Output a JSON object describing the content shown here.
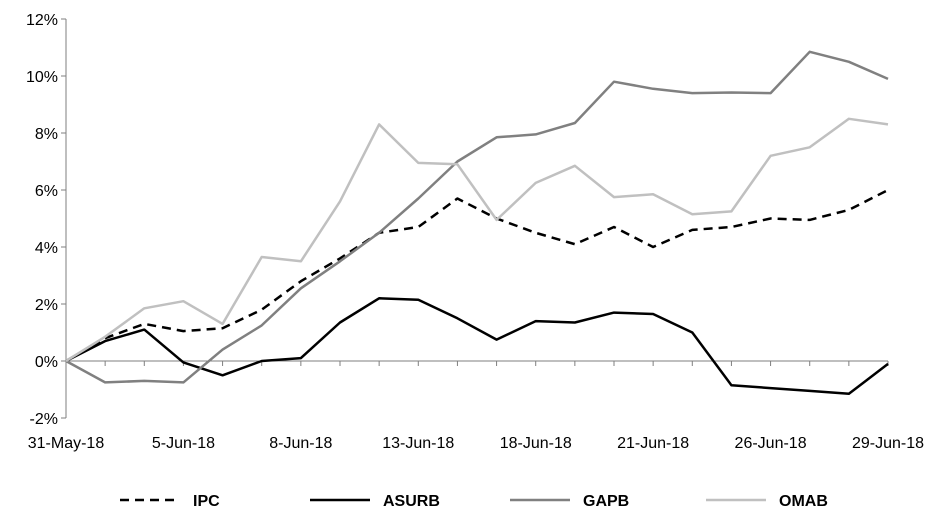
{
  "chart_data": {
    "type": "line",
    "title": "",
    "xlabel": "",
    "ylabel": "",
    "ylim": [
      -2,
      12
    ],
    "y_ticks": [
      -2,
      0,
      2,
      4,
      6,
      8,
      10,
      12
    ],
    "y_tick_labels": [
      "-2%",
      "0%",
      "2%",
      "4%",
      "6%",
      "8%",
      "10%",
      "12%"
    ],
    "x": [
      "31-May-18",
      "1-Jun-18",
      "4-Jun-18",
      "5-Jun-18",
      "6-Jun-18",
      "7-Jun-18",
      "8-Jun-18",
      "11-Jun-18",
      "12-Jun-18",
      "13-Jun-18",
      "14-Jun-18",
      "15-Jun-18",
      "18-Jun-18",
      "19-Jun-18",
      "20-Jun-18",
      "21-Jun-18",
      "22-Jun-18",
      "25-Jun-18",
      "26-Jun-18",
      "27-Jun-18",
      "28-Jun-18",
      "29-Jun-18"
    ],
    "x_tick_labels": [
      "31-May-18",
      "5-Jun-18",
      "8-Jun-18",
      "13-Jun-18",
      "18-Jun-18",
      "21-Jun-18",
      "26-Jun-18",
      "29-Jun-18"
    ],
    "grid": false,
    "legend_position": "bottom",
    "series": [
      {
        "name": "IPC",
        "color": "#000000",
        "style": "dashed",
        "values": [
          0.0,
          0.8,
          1.3,
          1.05,
          1.15,
          1.8,
          2.8,
          3.6,
          4.5,
          4.7,
          5.7,
          5.0,
          4.5,
          4.1,
          4.7,
          4.0,
          4.6,
          4.7,
          5.0,
          4.95,
          5.3,
          6.0
        ]
      },
      {
        "name": "ASURB",
        "color": "#000000",
        "style": "solid",
        "values": [
          0.0,
          0.7,
          1.1,
          -0.05,
          -0.5,
          0.0,
          0.1,
          1.35,
          2.2,
          2.15,
          1.5,
          0.75,
          1.4,
          1.35,
          1.7,
          1.65,
          1.0,
          -0.85,
          -0.95,
          -1.05,
          -1.15,
          -0.1
        ]
      },
      {
        "name": "GAPB",
        "color": "#808080",
        "style": "solid",
        "values": [
          0.0,
          -0.75,
          -0.7,
          -0.75,
          0.4,
          1.25,
          2.55,
          3.5,
          4.5,
          5.7,
          7.0,
          7.85,
          7.95,
          8.35,
          9.8,
          9.55,
          9.4,
          9.42,
          9.4,
          10.85,
          10.5,
          9.9
        ]
      },
      {
        "name": "OMAB",
        "color": "#c0c0c0",
        "style": "solid",
        "values": [
          0.0,
          0.85,
          1.85,
          2.1,
          1.3,
          3.65,
          3.5,
          5.6,
          8.3,
          6.95,
          6.9,
          4.95,
          6.25,
          6.85,
          5.75,
          5.85,
          5.15,
          5.25,
          7.2,
          7.5,
          8.5,
          8.3
        ]
      }
    ]
  }
}
